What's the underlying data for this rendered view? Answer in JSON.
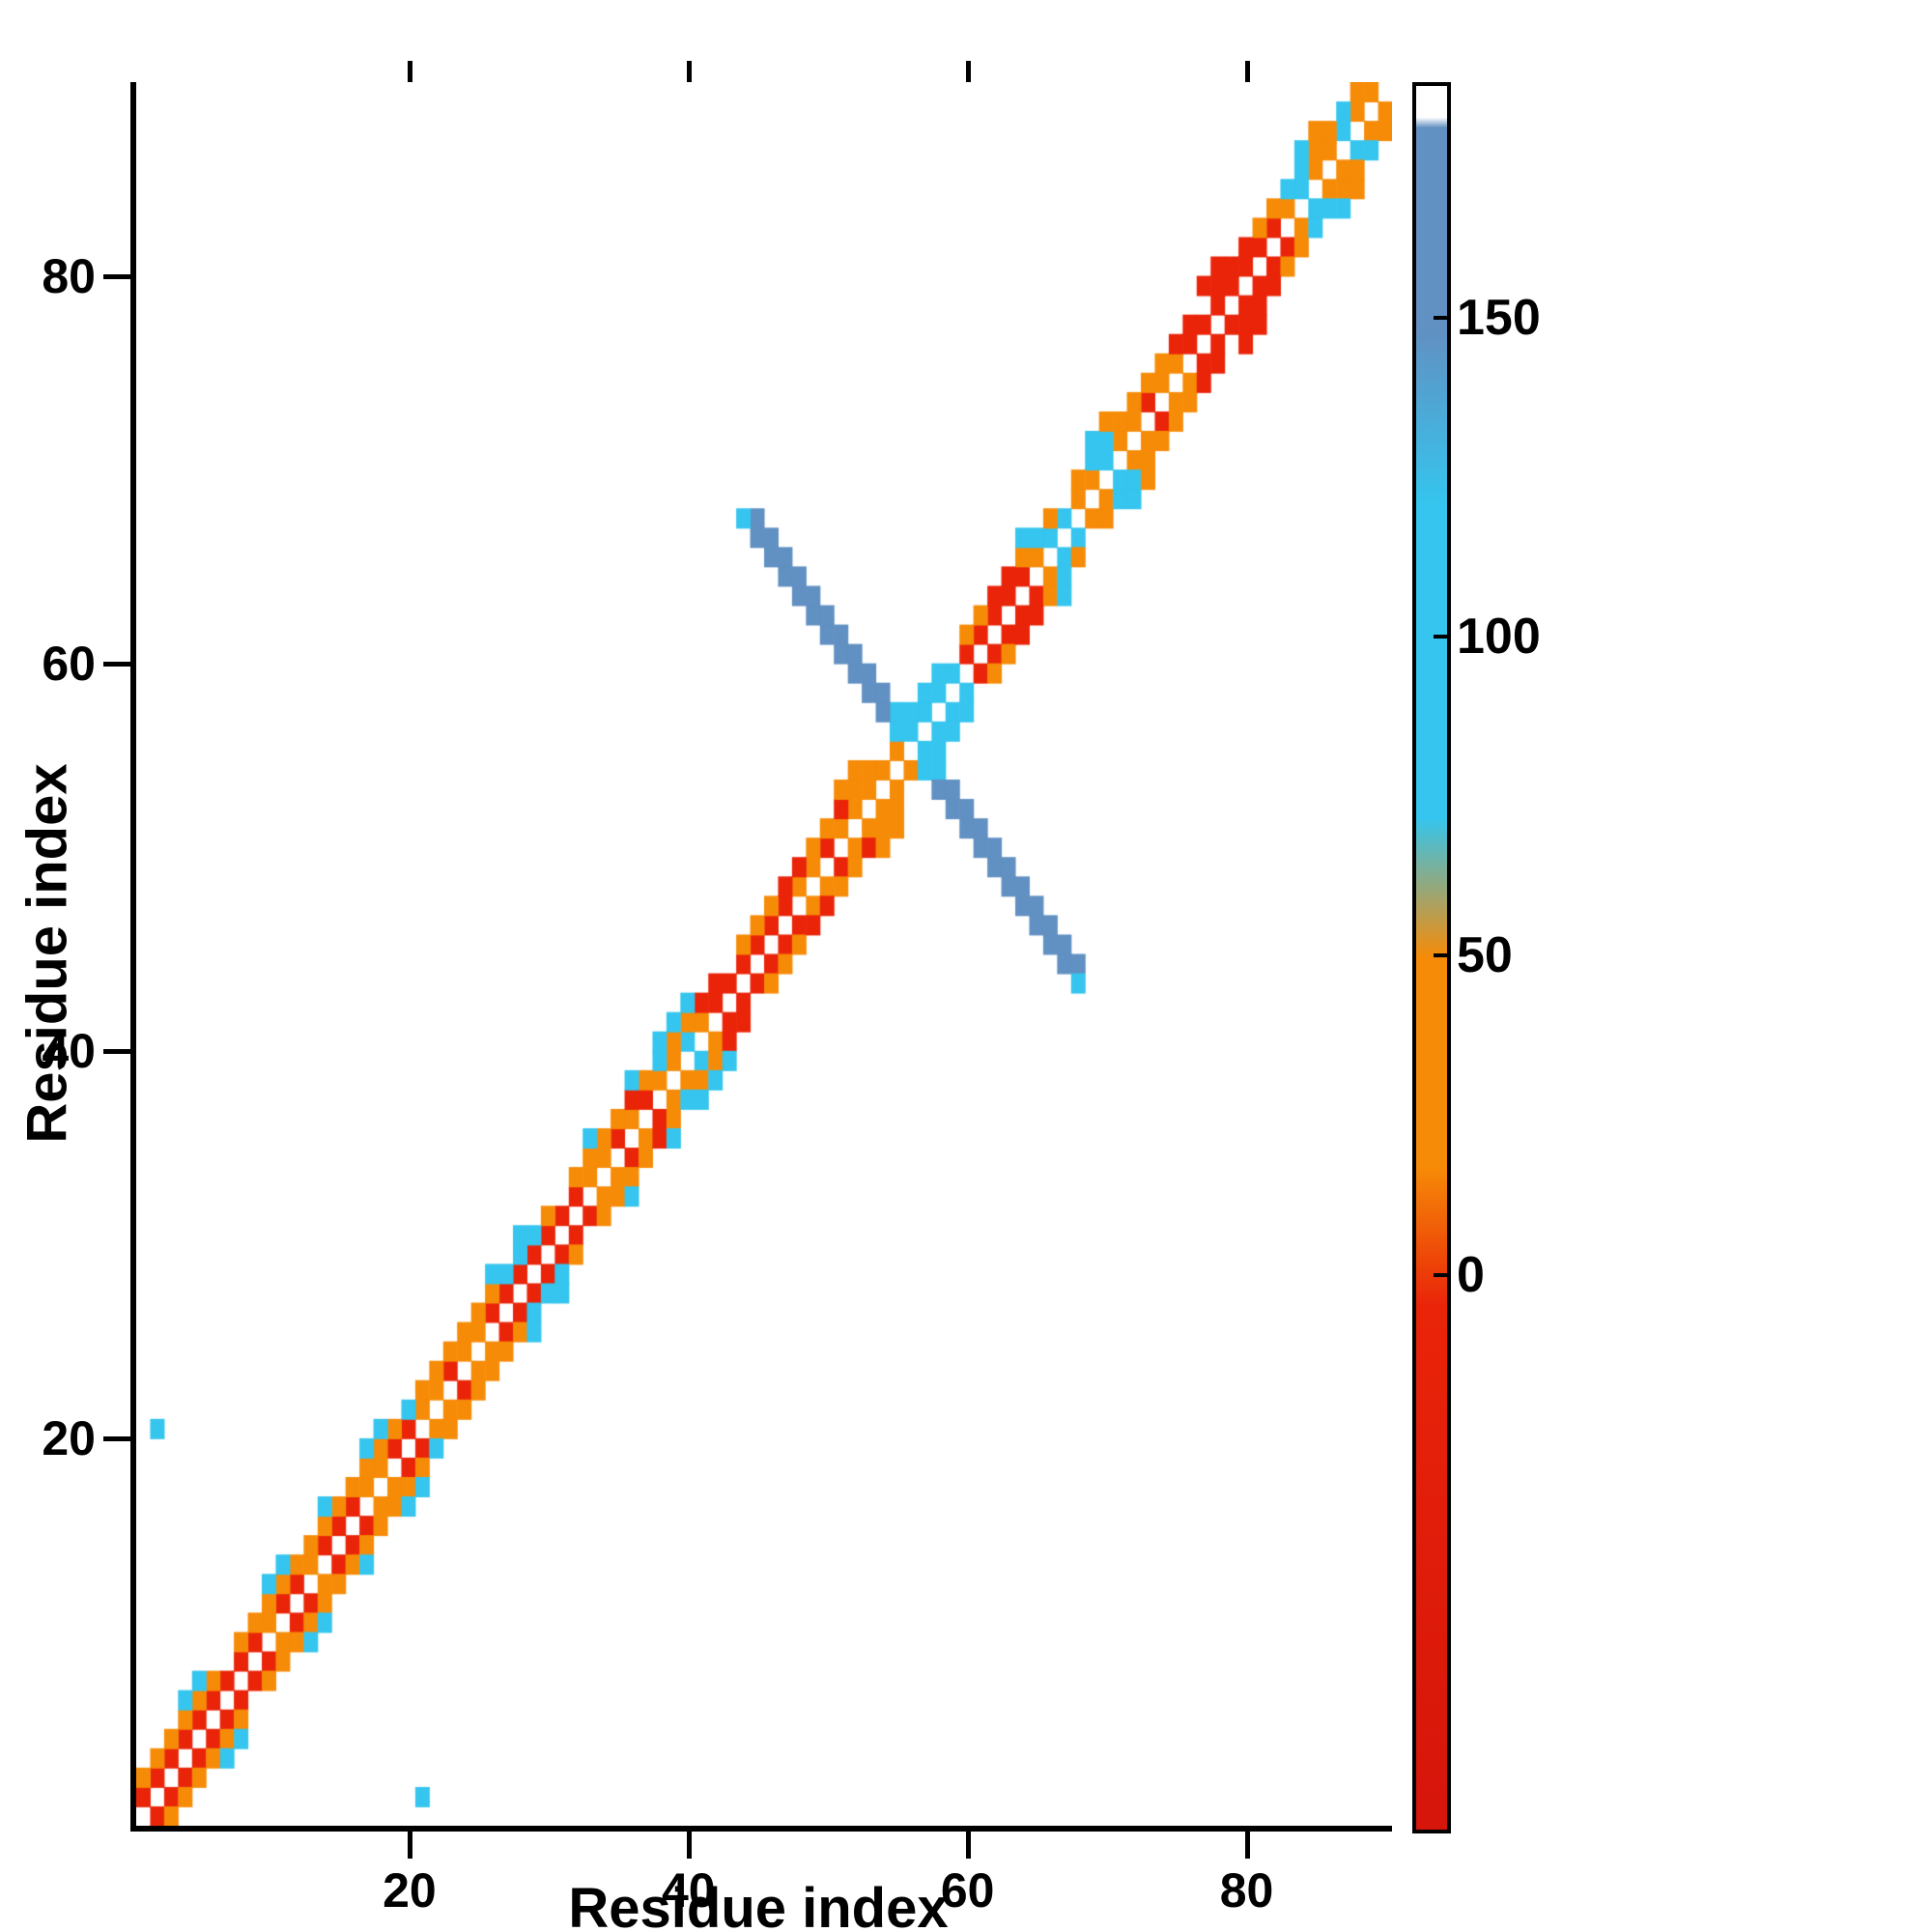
{
  "chart_data": {
    "type": "heatmap",
    "title": "",
    "xlabel": "Residue index",
    "ylabel": "Residue index",
    "x_range": [
      0,
      90
    ],
    "y_range": [
      0,
      90
    ],
    "x_ticks": [
      20,
      40,
      60,
      80
    ],
    "y_ticks": [
      20,
      40,
      60,
      80
    ],
    "grid": false,
    "legend_position": "right-colorbar",
    "background_color": "#ffffff",
    "symmetric": true,
    "value_colors": [
      {
        "max": 30,
        "color": "#e92409"
      },
      {
        "max": 85,
        "color": "#f68b07"
      },
      {
        "max": 130,
        "color": "#35c5ee"
      },
      {
        "max": 1000,
        "color": "#6190c2"
      }
    ],
    "colorbar": {
      "ticks": [
        {
          "label": "150",
          "pos": 13.5
        },
        {
          "label": "100",
          "pos": 31.8
        },
        {
          "label": "50",
          "pos": 50.1
        },
        {
          "label": "0",
          "pos": 68.4
        }
      ],
      "gradient": [
        {
          "pos": 0,
          "color": "#ffffff"
        },
        {
          "pos": 1.8,
          "color": "#ffffff"
        },
        {
          "pos": 2.4,
          "color": "#6190c2"
        },
        {
          "pos": 14,
          "color": "#6190c2"
        },
        {
          "pos": 24,
          "color": "#35c5ee"
        },
        {
          "pos": 42,
          "color": "#35c5ee"
        },
        {
          "pos": 50,
          "color": "#f68b07"
        },
        {
          "pos": 62,
          "color": "#f68b07"
        },
        {
          "pos": 70,
          "color": "#e92409"
        },
        {
          "pos": 100,
          "color": "#d6150b"
        }
      ]
    },
    "cells": [
      [
        1,
        2,
        10
      ],
      [
        2,
        3,
        10
      ],
      [
        3,
        4,
        10
      ],
      [
        4,
        5,
        10
      ],
      [
        5,
        6,
        10
      ],
      [
        6,
        7,
        10
      ],
      [
        7,
        8,
        10
      ],
      [
        8,
        9,
        10
      ],
      [
        9,
        10,
        10
      ],
      [
        11,
        12,
        10
      ],
      [
        12,
        13,
        10
      ],
      [
        14,
        15,
        10
      ],
      [
        15,
        16,
        10
      ],
      [
        16,
        17,
        10
      ],
      [
        19,
        20,
        10
      ],
      [
        20,
        21,
        10
      ],
      [
        23,
        24,
        10
      ],
      [
        26,
        27,
        10
      ],
      [
        27,
        28,
        10
      ],
      [
        28,
        29,
        10
      ],
      [
        29,
        30,
        10
      ],
      [
        30,
        31,
        10
      ],
      [
        31,
        32,
        10
      ],
      [
        32,
        33,
        10
      ],
      [
        35,
        36,
        10
      ],
      [
        37,
        38,
        10
      ],
      [
        42,
        43,
        10
      ],
      [
        43,
        44,
        10
      ],
      [
        44,
        45,
        10
      ],
      [
        45,
        46,
        10
      ],
      [
        46,
        47,
        10
      ],
      [
        47,
        48,
        10
      ],
      [
        50,
        51,
        10
      ],
      [
        60,
        61,
        10
      ],
      [
        61,
        62,
        10
      ],
      [
        62,
        63,
        10
      ],
      [
        63,
        64,
        10
      ],
      [
        64,
        65,
        10
      ],
      [
        73,
        74,
        10
      ],
      [
        76,
        77,
        10
      ],
      [
        77,
        78,
        10
      ],
      [
        78,
        79,
        10
      ],
      [
        79,
        80,
        10
      ],
      [
        80,
        81,
        10
      ],
      [
        81,
        82,
        10
      ],
      [
        82,
        83,
        10
      ],
      [
        10,
        11,
        50
      ],
      [
        13,
        14,
        50
      ],
      [
        17,
        18,
        50
      ],
      [
        18,
        19,
        50
      ],
      [
        21,
        22,
        50
      ],
      [
        22,
        23,
        50
      ],
      [
        24,
        25,
        50
      ],
      [
        25,
        26,
        50
      ],
      [
        33,
        34,
        50
      ],
      [
        34,
        35,
        50
      ],
      [
        36,
        37,
        50
      ],
      [
        38,
        39,
        50
      ],
      [
        39,
        40,
        50
      ],
      [
        41,
        42,
        50
      ],
      [
        48,
        49,
        50
      ],
      [
        49,
        50,
        50
      ],
      [
        51,
        52,
        50
      ],
      [
        52,
        53,
        50
      ],
      [
        53,
        54,
        50
      ],
      [
        54,
        55,
        50
      ],
      [
        55,
        56,
        50
      ],
      [
        65,
        66,
        50
      ],
      [
        68,
        69,
        50
      ],
      [
        69,
        70,
        50
      ],
      [
        71,
        72,
        50
      ],
      [
        72,
        73,
        50
      ],
      [
        74,
        75,
        50
      ],
      [
        75,
        76,
        50
      ],
      [
        83,
        84,
        50
      ],
      [
        85,
        86,
        50
      ],
      [
        86,
        87,
        50
      ],
      [
        88,
        89,
        50
      ],
      [
        89,
        90,
        50
      ],
      [
        40,
        41,
        100
      ],
      [
        56,
        57,
        100
      ],
      [
        57,
        58,
        100
      ],
      [
        58,
        59,
        100
      ],
      [
        59,
        60,
        100
      ],
      [
        66,
        67,
        100
      ],
      [
        67,
        68,
        100
      ],
      [
        70,
        71,
        100
      ],
      [
        84,
        85,
        100
      ],
      [
        87,
        88,
        100
      ],
      [
        1,
        3,
        50
      ],
      [
        2,
        4,
        50
      ],
      [
        3,
        5,
        50
      ],
      [
        4,
        6,
        50
      ],
      [
        5,
        7,
        50
      ],
      [
        6,
        8,
        50
      ],
      [
        8,
        10,
        50
      ],
      [
        9,
        11,
        50
      ],
      [
        10,
        12,
        50
      ],
      [
        11,
        13,
        50
      ],
      [
        12,
        14,
        50
      ],
      [
        13,
        15,
        50
      ],
      [
        14,
        16,
        50
      ],
      [
        15,
        17,
        50
      ],
      [
        16,
        18,
        50
      ],
      [
        17,
        19,
        50
      ],
      [
        18,
        20,
        50
      ],
      [
        19,
        21,
        50
      ],
      [
        21,
        23,
        50
      ],
      [
        22,
        24,
        50
      ],
      [
        23,
        25,
        50
      ],
      [
        24,
        26,
        50
      ],
      [
        25,
        27,
        50
      ],
      [
        26,
        28,
        50
      ],
      [
        30,
        32,
        50
      ],
      [
        32,
        34,
        50
      ],
      [
        33,
        35,
        50
      ],
      [
        34,
        36,
        50
      ],
      [
        35,
        37,
        50
      ],
      [
        37,
        39,
        50
      ],
      [
        39,
        41,
        50
      ],
      [
        40,
        42,
        50
      ],
      [
        44,
        46,
        50
      ],
      [
        45,
        47,
        50
      ],
      [
        46,
        48,
        50
      ],
      [
        49,
        51,
        50
      ],
      [
        50,
        52,
        50
      ],
      [
        52,
        54,
        50
      ],
      [
        53,
        55,
        50
      ],
      [
        60,
        62,
        50
      ],
      [
        61,
        63,
        50
      ],
      [
        64,
        66,
        50
      ],
      [
        66,
        68,
        50
      ],
      [
        68,
        70,
        50
      ],
      [
        71,
        73,
        50
      ],
      [
        72,
        74,
        50
      ],
      [
        73,
        75,
        50
      ],
      [
        74,
        76,
        50
      ],
      [
        81,
        83,
        50
      ],
      [
        82,
        84,
        50
      ],
      [
        85,
        87,
        50
      ],
      [
        86,
        88,
        50
      ],
      [
        88,
        90,
        50
      ],
      [
        36,
        38,
        10
      ],
      [
        41,
        43,
        10
      ],
      [
        42,
        44,
        10
      ],
      [
        47,
        49,
        10
      ],
      [
        48,
        50,
        10
      ],
      [
        51,
        53,
        10
      ],
      [
        62,
        64,
        10
      ],
      [
        63,
        65,
        10
      ],
      [
        75,
        77,
        10
      ],
      [
        76,
        78,
        10
      ],
      [
        78,
        80,
        10
      ],
      [
        79,
        81,
        10
      ],
      [
        80,
        82,
        10
      ],
      [
        77,
        80,
        10
      ],
      [
        78,
        81,
        10
      ],
      [
        20,
        22,
        100
      ],
      [
        27,
        29,
        100
      ],
      [
        28,
        30,
        100
      ],
      [
        29,
        31,
        100
      ],
      [
        38,
        40,
        100
      ],
      [
        55,
        57,
        100
      ],
      [
        56,
        58,
        100
      ],
      [
        57,
        59,
        100
      ],
      [
        58,
        60,
        100
      ],
      [
        65,
        67,
        100
      ],
      [
        69,
        71,
        100
      ],
      [
        70,
        72,
        100
      ],
      [
        83,
        85,
        100
      ],
      [
        84,
        86,
        100
      ],
      [
        87,
        89,
        100
      ],
      [
        4,
        7,
        100
      ],
      [
        5,
        8,
        100
      ],
      [
        10,
        13,
        100
      ],
      [
        11,
        14,
        100
      ],
      [
        14,
        17,
        100
      ],
      [
        17,
        20,
        100
      ],
      [
        18,
        21,
        100
      ],
      [
        26,
        29,
        100
      ],
      [
        28,
        31,
        100
      ],
      [
        33,
        36,
        100
      ],
      [
        36,
        39,
        100
      ],
      [
        38,
        41,
        100
      ],
      [
        39,
        42,
        100
      ],
      [
        40,
        43,
        100
      ],
      [
        55,
        58,
        100
      ],
      [
        64,
        67,
        100
      ],
      [
        69,
        72,
        100
      ],
      [
        84,
        87,
        100
      ],
      [
        51,
        54,
        50
      ],
      [
        52,
        55,
        50
      ],
      [
        70,
        73,
        50
      ],
      [
        85,
        88,
        50
      ],
      [
        45,
        67,
        150
      ],
      [
        45,
        68,
        150
      ],
      [
        46,
        66,
        150
      ],
      [
        46,
        67,
        150
      ],
      [
        47,
        65,
        150
      ],
      [
        47,
        66,
        150
      ],
      [
        48,
        64,
        150
      ],
      [
        48,
        65,
        150
      ],
      [
        49,
        63,
        150
      ],
      [
        49,
        64,
        150
      ],
      [
        50,
        62,
        150
      ],
      [
        50,
        63,
        150
      ],
      [
        51,
        61,
        150
      ],
      [
        51,
        62,
        150
      ],
      [
        52,
        60,
        150
      ],
      [
        52,
        61,
        150
      ],
      [
        53,
        59,
        150
      ],
      [
        53,
        60,
        150
      ],
      [
        54,
        58,
        150
      ],
      [
        54,
        59,
        150
      ],
      [
        44,
        68,
        100
      ],
      [
        2,
        21,
        100
      ]
    ]
  }
}
